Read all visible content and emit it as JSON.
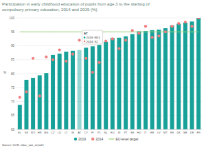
{
  "chart_data": {
    "type": "bar",
    "title": "Participation in early childhood education of pupils from age 3 to the starting of",
    "subtitle": "compulsory primary education, 2014 and 2019 (%)",
    "y_label": "%",
    "source": "Source: UOE, educ_uoe_enra21",
    "categories": [
      "EL",
      "SK",
      "RO",
      "HR",
      "BG",
      "CZ",
      "LU",
      "LT",
      "IE",
      "AT",
      "CY",
      "FI",
      "PL",
      "NL",
      "EU",
      "SI",
      "PT",
      "SE",
      "HU",
      "IT",
      "EE",
      "LV",
      "MT",
      "ES",
      "DK",
      "BE",
      "DE",
      "FR"
    ],
    "series": [
      {
        "name": "2019",
        "type": "bar",
        "color": "#17a199",
        "values": [
          68.8,
          77.8,
          78.5,
          79.4,
          80.2,
          86.7,
          87.2,
          87.9,
          88.2,
          88.5,
          89.3,
          89.8,
          90.3,
          91.4,
          92.8,
          92.9,
          93.4,
          94.2,
          95.2,
          95.3,
          95.6,
          95.8,
          96.3,
          97.3,
          97.9,
          98.3,
          98.7,
          100
        ]
      },
      {
        "name": "2014",
        "type": "scatter",
        "marker": "circle",
        "color": "#f07e7e",
        "values": [
          71.5,
          73.5,
          85.5,
          72,
          86,
          85,
          88.5,
          84.5,
          87,
          92,
          85.5,
          80.5,
          84,
          91.7,
          92.5,
          89,
          92,
          95.5,
          94.5,
          97,
          93,
          93.5,
          95,
          97,
          98,
          98.5,
          97,
          100
        ]
      },
      {
        "name": "EU-level target",
        "type": "line",
        "line_style": "solid",
        "color": "#9ad47c",
        "values": [
          95,
          95,
          95,
          95,
          95,
          95,
          95,
          95,
          95,
          95,
          95,
          95,
          95,
          95,
          95,
          95,
          95,
          95,
          95,
          95,
          95,
          95,
          95,
          95,
          95,
          95,
          95,
          95
        ]
      }
    ],
    "tooltip": {
      "title": "AT",
      "lines": [
        "2019: 88.5",
        "2014: 92"
      ]
    },
    "ylim": [
      60,
      100
    ],
    "yticks": [
      60,
      65,
      70,
      75,
      80,
      85,
      90,
      95,
      100
    ],
    "grid": true,
    "legend": "bottom"
  }
}
